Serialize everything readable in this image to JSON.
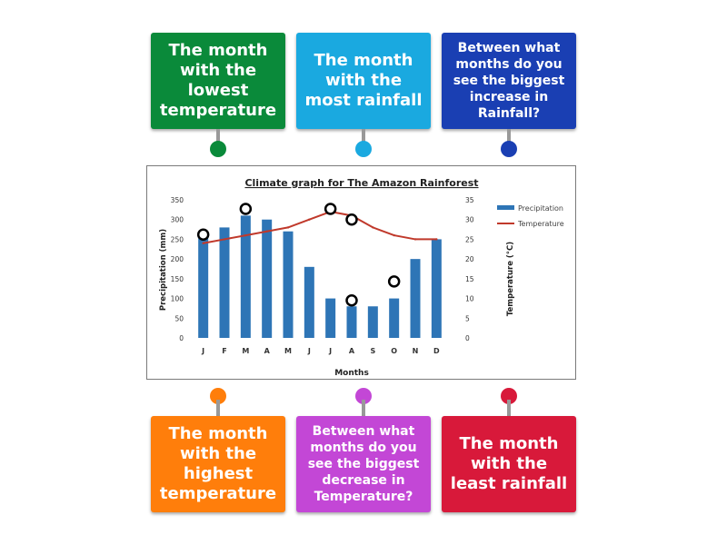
{
  "cards": {
    "lowest_temp": "The month with the lowest temperature",
    "most_rainfall": "The month with the most rainfall",
    "biggest_rain_increase": "Between what months do you see the biggest increase in Rainfall?",
    "highest_temp": "The month with the highest temperature",
    "biggest_temp_decrease": "Between what months do you see the biggest decrease in Temperature?",
    "least_rainfall": "The month with the least rainfall"
  },
  "colors": {
    "green": "#0a8a3a",
    "lightblue": "#1aa9e0",
    "navy": "#1a3fb3",
    "orange": "#ff7e0b",
    "purple": "#c347d6",
    "red": "#d8193a",
    "bar": "#2e75b6",
    "line": "#c0392b"
  },
  "chart_data": {
    "type": "bar",
    "title": "Climate graph for The Amazon Rainforest",
    "categories": [
      "J",
      "F",
      "M",
      "A",
      "M",
      "J",
      "J",
      "A",
      "S",
      "O",
      "N",
      "D"
    ],
    "series": [
      {
        "name": "Precipitation",
        "type": "bar",
        "axis": "left",
        "values": [
          265,
          280,
          310,
          300,
          270,
          180,
          100,
          80,
          80,
          100,
          200,
          250
        ]
      },
      {
        "name": "Temperature",
        "type": "line",
        "axis": "right",
        "values": [
          24,
          25,
          26,
          27,
          28,
          30,
          32,
          31,
          28,
          26,
          25,
          25
        ]
      }
    ],
    "xlabel": "Months",
    "ylabel": "Precipitation (mm)",
    "y2label": "Temperature (°C)",
    "ylim": [
      0,
      350
    ],
    "y2lim": [
      0,
      35
    ],
    "yticks": [
      0,
      50,
      100,
      150,
      200,
      250,
      300,
      350
    ],
    "y2ticks": [
      0,
      5,
      10,
      15,
      20,
      25,
      30,
      35
    ],
    "legend": [
      "Precipitation",
      "Temperature"
    ],
    "markers": [
      {
        "month_index": 0,
        "value_mm": 262
      },
      {
        "month_index": 2,
        "value_mm": 327
      },
      {
        "month_index": 6,
        "value_mm": 327
      },
      {
        "month_index": 7,
        "value_mm": 300
      },
      {
        "month_index": 7,
        "value_mm": 95
      },
      {
        "month_index": 9,
        "value_mm": 143
      }
    ]
  }
}
